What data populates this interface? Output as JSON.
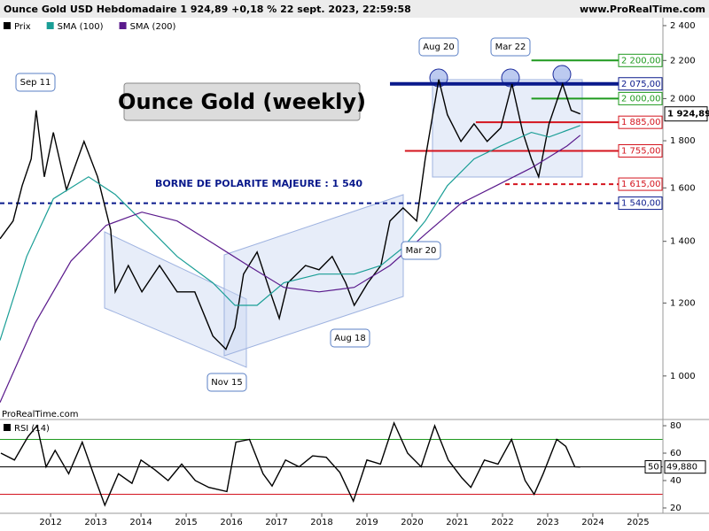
{
  "chart_data": [
    {
      "type": "line",
      "title": "Ounce Gold USD Hebdomadaire 1 924,89 +0,18 % 22 sept. 2023, 22:59:58",
      "source": "www.ProRealTime.com",
      "watermark": "ProRealTime.com",
      "headline": "Ounce Gold (weekly)",
      "note": "BORNE DE POLARITE MAJEURE : 1 540",
      "log_scale": true,
      "xlim": [
        2010.88,
        2025.55
      ],
      "ylim": [
        915,
        2448
      ],
      "xticks": [
        2012,
        2013,
        2014,
        2015,
        2016,
        2017,
        2018,
        2019,
        2020,
        2021,
        2022,
        2023,
        2024,
        2025
      ],
      "yticks": [
        {
          "value": 1000,
          "label": "1 000"
        },
        {
          "value": 1200,
          "label": "1 200"
        },
        {
          "value": 1400,
          "label": "1 400"
        },
        {
          "value": 1600,
          "label": "1 600"
        },
        {
          "value": 1800,
          "label": "1 800"
        },
        {
          "value": 2000,
          "label": "2 000"
        },
        {
          "value": 2200,
          "label": "2 200"
        },
        {
          "value": 2400,
          "label": "2 400"
        }
      ],
      "last_price": {
        "value": 1924.89,
        "label": "1 924,89"
      },
      "series": [
        {
          "name": "Prix",
          "color": "#000000",
          "x": [
            2010.88,
            2011.17,
            2011.37,
            2011.57,
            2011.68,
            2011.86,
            2012.06,
            2012.35,
            2012.74,
            2013.04,
            2013.33,
            2013.43,
            2013.72,
            2014.02,
            2014.41,
            2014.8,
            2015.19,
            2015.59,
            2015.88,
            2016.08,
            2016.27,
            2016.57,
            2016.86,
            2017.06,
            2017.25,
            2017.64,
            2017.94,
            2018.23,
            2018.53,
            2018.72,
            2019.02,
            2019.31,
            2019.51,
            2019.8,
            2020.1,
            2020.29,
            2020.59,
            2020.78,
            2021.08,
            2021.37,
            2021.66,
            2021.96,
            2022.21,
            2022.45,
            2022.64,
            2022.8,
            2023.03,
            2023.33,
            2023.52,
            2023.72
          ],
          "values": [
            1409,
            1473,
            1609,
            1720,
            1942,
            1645,
            1838,
            1592,
            1797,
            1645,
            1441,
            1234,
            1318,
            1234,
            1318,
            1234,
            1234,
            1105,
            1069,
            1129,
            1290,
            1363,
            1234,
            1155,
            1262,
            1318,
            1304,
            1348,
            1262,
            1193,
            1262,
            1318,
            1473,
            1522,
            1473,
            1720,
            2098,
            1921,
            1797,
            1878,
            1797,
            1859,
            2074,
            1838,
            1720,
            1645,
            1878,
            2074,
            1942,
            1924.89
          ]
        },
        {
          "name": "SMA (100)",
          "color": "#1a9e96",
          "x": [
            2010.88,
            2011.47,
            2012.06,
            2012.84,
            2013.43,
            2014.02,
            2014.8,
            2015.59,
            2016.08,
            2016.57,
            2017.16,
            2017.94,
            2018.72,
            2019.31,
            2019.8,
            2020.29,
            2020.78,
            2021.37,
            2021.96,
            2022.64,
            2023.03,
            2023.72
          ],
          "values": [
            1093,
            1348,
            1557,
            1645,
            1574,
            1473,
            1348,
            1262,
            1193,
            1193,
            1262,
            1290,
            1290,
            1318,
            1378,
            1473,
            1609,
            1720,
            1777,
            1838,
            1817,
            1870
          ]
        },
        {
          "name": "SMA (200)",
          "color": "#5a1a8c",
          "x": [
            2010.88,
            2011.66,
            2012.45,
            2013.23,
            2014.02,
            2014.8,
            2015.59,
            2016.37,
            2017.16,
            2017.94,
            2018.72,
            2019.51,
            2020.29,
            2021.08,
            2021.86,
            2022.64,
            2023.43,
            2023.72
          ],
          "values": [
            936,
            1142,
            1333,
            1457,
            1506,
            1473,
            1393,
            1318,
            1248,
            1234,
            1248,
            1318,
            1425,
            1539,
            1609,
            1682,
            1777,
            1825
          ]
        }
      ],
      "levels": [
        {
          "value": 2200,
          "label": "2 200,00",
          "color": "#1f9a1f",
          "start": 2022.64,
          "style": "solid"
        },
        {
          "value": 2075,
          "label": "2 075,00",
          "color": "#0a1a8c",
          "start": 2019.51,
          "style": "bold"
        },
        {
          "value": 2000,
          "label": "2 000,00",
          "color": "#1f9a1f",
          "start": 2022.64,
          "style": "solid"
        },
        {
          "value": 1885,
          "label": "1 885,00",
          "color": "#d4141e",
          "start": 2021.41,
          "style": "solid"
        },
        {
          "value": 1755,
          "label": "1 755,00",
          "color": "#d4141e",
          "start": 2019.84,
          "style": "solid"
        },
        {
          "value": 1615,
          "label": "1 615,00",
          "color": "#d4141e",
          "start": 2022.06,
          "style": "dashed"
        },
        {
          "value": 1540,
          "label": "1 540,00",
          "color": "#0a1a8c",
          "start": 2010.88,
          "style": "dashed"
        }
      ],
      "annotations": [
        "Sep 11",
        "Aug 20",
        "Mar 22",
        "Mar 20",
        "Aug 18",
        "Nov 15"
      ]
    },
    {
      "type": "line",
      "legend": "RSI (14)",
      "xlim": [
        2010.88,
        2025.55
      ],
      "ylim": [
        17.4,
        83.9
      ],
      "yticks": [
        20,
        40,
        60,
        80
      ],
      "levels": [
        {
          "value": 70,
          "color": "#1f9a1f"
        },
        {
          "value": 50,
          "color": "#000000"
        },
        {
          "value": 30,
          "color": "#d4141e"
        }
      ],
      "level_label": 50,
      "last_value": {
        "value": 49.88,
        "label": "49,880"
      },
      "series": [
        {
          "name": "RSI",
          "color": "#000000",
          "x": [
            2010.9,
            2011.2,
            2011.5,
            2011.7,
            2011.9,
            2012.1,
            2012.4,
            2012.7,
            2013.0,
            2013.2,
            2013.5,
            2013.8,
            2014.0,
            2014.3,
            2014.6,
            2014.9,
            2015.2,
            2015.5,
            2015.9,
            2016.1,
            2016.4,
            2016.7,
            2016.9,
            2017.2,
            2017.5,
            2017.8,
            2018.1,
            2018.4,
            2018.7,
            2019.0,
            2019.3,
            2019.6,
            2019.9,
            2020.2,
            2020.5,
            2020.8,
            2021.1,
            2021.3,
            2021.6,
            2021.9,
            2022.2,
            2022.5,
            2022.7,
            2022.9,
            2023.2,
            2023.4,
            2023.6,
            2023.72
          ],
          "values": [
            60,
            55,
            72,
            80,
            50,
            62,
            45,
            68,
            40,
            22,
            45,
            38,
            55,
            48,
            40,
            52,
            40,
            35,
            32,
            68,
            70,
            45,
            36,
            55,
            50,
            58,
            57,
            46,
            25,
            55,
            52,
            82,
            60,
            50,
            80,
            55,
            42,
            35,
            55,
            52,
            70,
            40,
            30,
            45,
            70,
            65,
            50,
            49.88
          ]
        }
      ]
    }
  ]
}
